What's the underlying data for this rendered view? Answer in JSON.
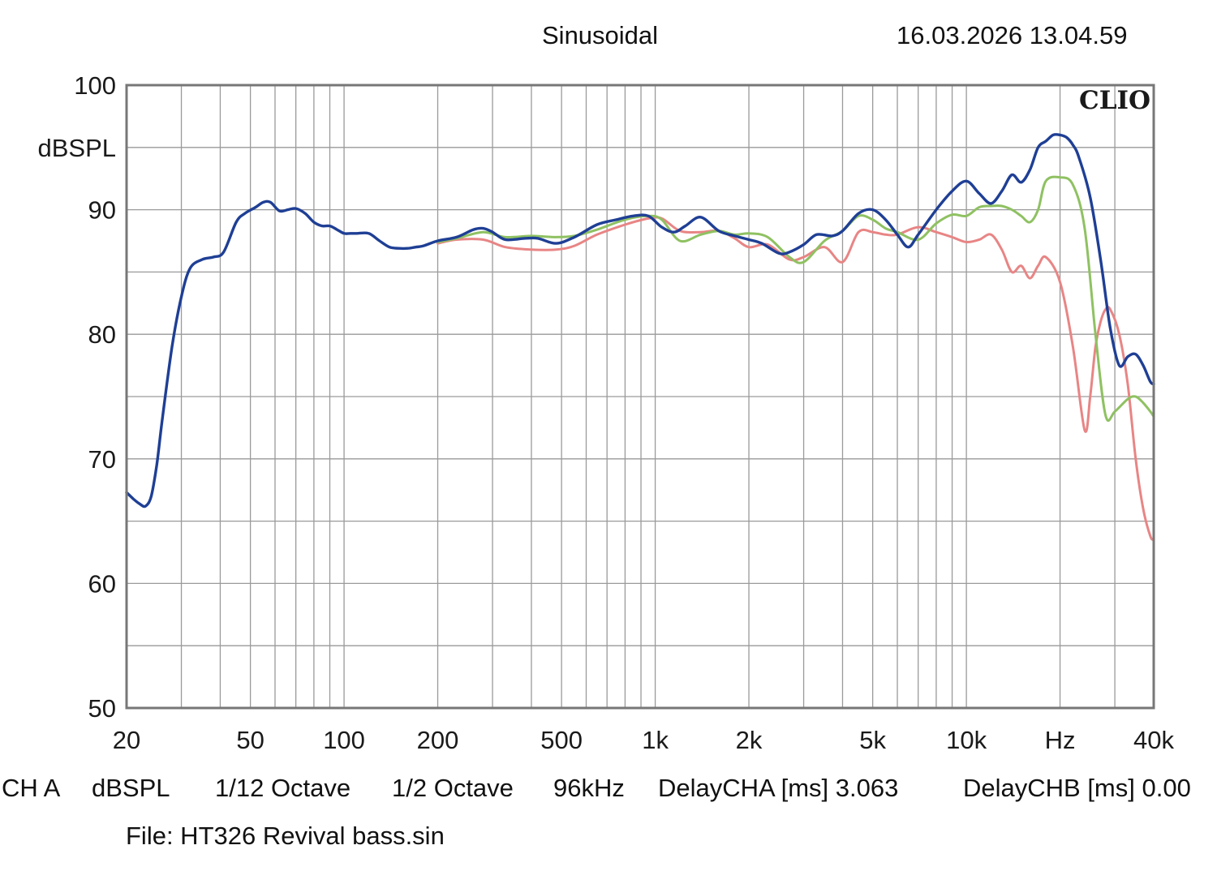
{
  "header": {
    "title": "Sinusoidal",
    "timestamp": "16.03.2026 13.04.59",
    "logo": "CLIO"
  },
  "status_line": {
    "channel": "CH A",
    "unit": "dBSPL",
    "smoothing": "1/12 Octave",
    "resolution": "1/2 Octave",
    "sample_rate": "96kHz",
    "delay_a": "DelayCHA [ms] 3.063",
    "delay_b": "DelayCHB [ms] 0.00"
  },
  "file_line": "File: HT326 Revival bass.sin",
  "colors": {
    "blue": "#1f3f95",
    "green": "#8fc162",
    "red": "#e88585",
    "grid": "#9a9a9a",
    "frame": "#777777"
  },
  "chart_data": {
    "type": "line",
    "title": "Sinusoidal",
    "ylabel": "dBSPL",
    "xlabel": "Hz",
    "x_scale": "log",
    "xlim": [
      20,
      40000
    ],
    "ylim": [
      50,
      100
    ],
    "grid": true,
    "x_ticks": [
      {
        "value": 20,
        "label": "20"
      },
      {
        "value": 50,
        "label": "50"
      },
      {
        "value": 100,
        "label": "100"
      },
      {
        "value": 200,
        "label": "200"
      },
      {
        "value": 500,
        "label": "500"
      },
      {
        "value": 1000,
        "label": "1k"
      },
      {
        "value": 2000,
        "label": "2k"
      },
      {
        "value": 5000,
        "label": "5k"
      },
      {
        "value": 10000,
        "label": "10k"
      },
      {
        "value": 20000,
        "label": "Hz"
      },
      {
        "value": 40000,
        "label": "40k"
      }
    ],
    "y_ticks": [
      {
        "value": 100,
        "label": "100"
      },
      {
        "value": 95,
        "label": "dBSPL"
      },
      {
        "value": 90,
        "label": "90"
      },
      {
        "value": 80,
        "label": "80"
      },
      {
        "value": 70,
        "label": "70"
      },
      {
        "value": 60,
        "label": "60"
      },
      {
        "value": 50,
        "label": "50"
      }
    ],
    "series": [
      {
        "color": "#e88585",
        "x": [
          200,
          230,
          280,
          330,
          400,
          480,
          550,
          650,
          800,
          950,
          1050,
          1200,
          1400,
          1600,
          1800,
          2000,
          2300,
          2700,
          3000,
          3500,
          4000,
          4500,
          5000,
          5500,
          6000,
          7000,
          8000,
          9000,
          10000,
          11000,
          12000,
          13000,
          14000,
          15000,
          16000,
          17000,
          18000,
          20000,
          22000,
          24000,
          25000,
          26000,
          27000,
          28000,
          29000,
          31000,
          33000,
          35000,
          37000,
          39000,
          40000
        ],
        "y": [
          87.3,
          87.6,
          87.6,
          87.0,
          86.8,
          86.8,
          87.1,
          88.0,
          88.8,
          89.3,
          89.3,
          88.3,
          88.2,
          88.3,
          87.7,
          87.0,
          87.2,
          86.0,
          86.2,
          87.0,
          85.8,
          88.2,
          88.2,
          88.0,
          88.0,
          88.6,
          88.2,
          87.8,
          87.4,
          87.6,
          88.0,
          86.8,
          85.0,
          85.5,
          84.5,
          85.5,
          86.2,
          84.2,
          79.0,
          72.3,
          75.0,
          79.0,
          81.0,
          82.0,
          82.0,
          80.0,
          76.0,
          70.0,
          66.0,
          63.8,
          63.5
        ]
      },
      {
        "color": "#8fc162",
        "x": [
          200,
          230,
          280,
          330,
          400,
          480,
          550,
          650,
          800,
          950,
          1050,
          1200,
          1400,
          1600,
          1800,
          2000,
          2300,
          2700,
          3000,
          3500,
          4000,
          4500,
          5000,
          5500,
          6000,
          7000,
          8000,
          9000,
          10000,
          11000,
          12000,
          13000,
          14000,
          15000,
          16000,
          17000,
          18000,
          20000,
          22000,
          24000,
          26000,
          28000,
          30000,
          33000,
          35000,
          37000,
          39000,
          40000
        ],
        "y": [
          87.4,
          87.7,
          88.2,
          87.8,
          87.9,
          87.8,
          87.9,
          88.4,
          89.2,
          89.5,
          89.2,
          87.5,
          88.0,
          88.3,
          88.0,
          88.1,
          87.8,
          86.2,
          85.8,
          87.5,
          88.3,
          89.5,
          89.2,
          88.5,
          88.2,
          87.6,
          88.9,
          89.6,
          89.5,
          90.2,
          90.3,
          90.3,
          90.0,
          89.5,
          89.0,
          90.0,
          92.3,
          92.6,
          92.0,
          88.5,
          80.0,
          73.5,
          73.8,
          74.8,
          75.0,
          74.5,
          73.8,
          73.4
        ]
      },
      {
        "color": "#1f3f95",
        "x": [
          20,
          21,
          22,
          23,
          24,
          25,
          26,
          28,
          30,
          32,
          35,
          38,
          41,
          45,
          48,
          52,
          55,
          58,
          62,
          66,
          70,
          75,
          80,
          85,
          90,
          95,
          100,
          105,
          110,
          120,
          130,
          140,
          150,
          160,
          170,
          180,
          200,
          230,
          260,
          280,
          300,
          330,
          380,
          420,
          480,
          550,
          650,
          750,
          850,
          950,
          1050,
          1150,
          1250,
          1400,
          1600,
          1800,
          2000,
          2200,
          2500,
          2700,
          3000,
          3300,
          3700,
          4000,
          4500,
          5000,
          5500,
          6000,
          6500,
          7000,
          8000,
          9000,
          10000,
          11000,
          12000,
          13000,
          14000,
          15000,
          16000,
          17000,
          18000,
          19000,
          20000,
          21000,
          22000,
          23000,
          25000,
          27000,
          29000,
          31000,
          33000,
          35000,
          37000,
          39000,
          40000
        ],
        "y": [
          67.3,
          66.8,
          66.4,
          66.2,
          67.0,
          69.5,
          73.0,
          79.0,
          83.0,
          85.3,
          86.0,
          86.2,
          86.6,
          89.0,
          89.7,
          90.2,
          90.6,
          90.6,
          89.9,
          90.0,
          90.1,
          89.7,
          89.0,
          88.7,
          88.7,
          88.4,
          88.1,
          88.1,
          88.1,
          88.1,
          87.5,
          87.0,
          86.9,
          86.9,
          87.0,
          87.1,
          87.5,
          87.8,
          88.4,
          88.5,
          88.2,
          87.6,
          87.7,
          87.7,
          87.3,
          87.8,
          88.8,
          89.2,
          89.5,
          89.5,
          88.6,
          88.2,
          88.7,
          89.4,
          88.3,
          87.9,
          87.6,
          87.3,
          86.5,
          86.6,
          87.2,
          88.0,
          87.9,
          88.3,
          89.7,
          90.0,
          89.2,
          88.0,
          87.0,
          88.0,
          90.0,
          91.5,
          92.3,
          91.3,
          90.5,
          91.5,
          92.8,
          92.2,
          93.2,
          95.0,
          95.5,
          96.0,
          96.0,
          95.8,
          95.2,
          94.2,
          91.0,
          86.0,
          80.5,
          77.5,
          78.2,
          78.4,
          77.5,
          76.2,
          76.0
        ]
      }
    ]
  }
}
